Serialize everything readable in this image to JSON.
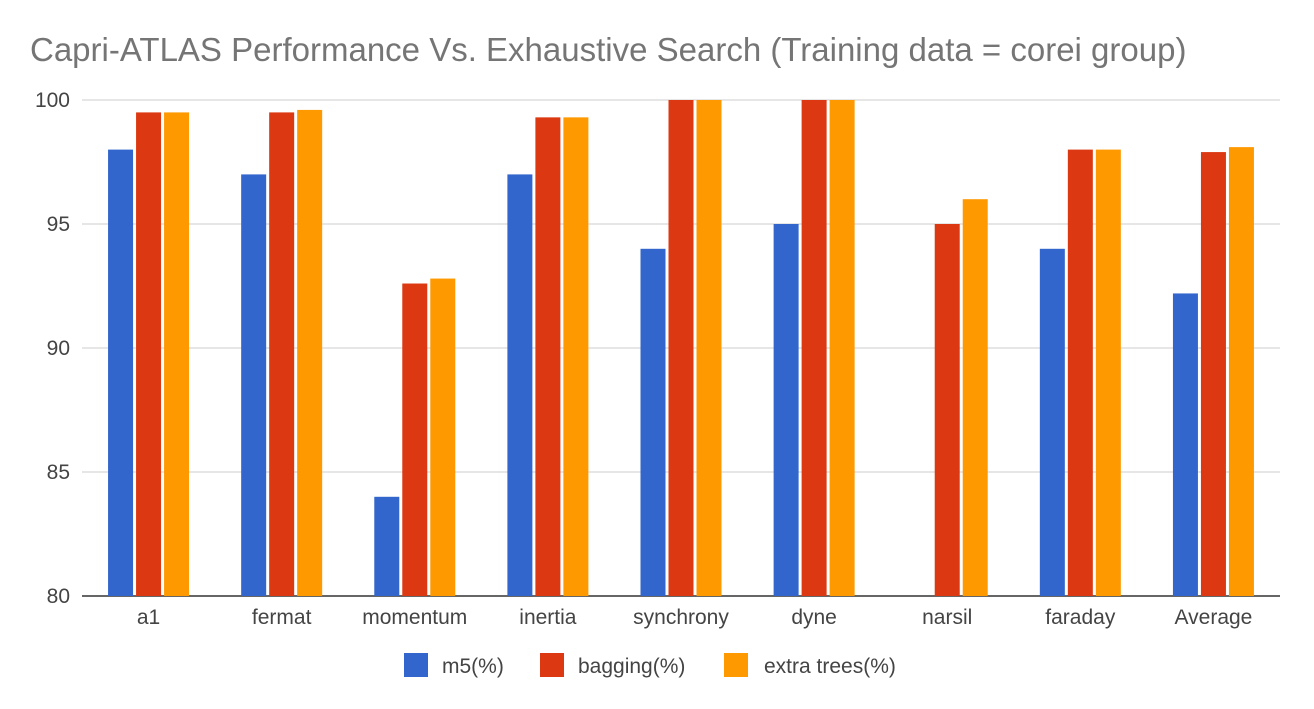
{
  "chart_data": {
    "type": "bar",
    "title": "Capri-ATLAS Performance Vs. Exhaustive Search (Training data = corei group)",
    "xlabel": "",
    "ylabel": "",
    "categories": [
      "a1",
      "fermat",
      "momentum",
      "inertia",
      "synchrony",
      "dyne",
      "narsil",
      "faraday",
      "Average"
    ],
    "series": [
      {
        "name": "m5(%)",
        "color": "#3366cc",
        "values": [
          98,
          97,
          84,
          97,
          94,
          95,
          null,
          94,
          92.2
        ]
      },
      {
        "name": "bagging(%)",
        "color": "#dc3912",
        "values": [
          99.5,
          99.5,
          92.6,
          99.3,
          100,
          100,
          95,
          98,
          97.9
        ]
      },
      {
        "name": "extra trees(%)",
        "color": "#ff9900",
        "values": [
          99.5,
          99.6,
          92.8,
          99.3,
          100,
          100,
          96,
          98,
          98.1
        ]
      }
    ],
    "ylim": [
      80,
      100
    ],
    "yticks": [
      80,
      85,
      90,
      95,
      100
    ],
    "grid": true,
    "legend_position": "bottom"
  }
}
